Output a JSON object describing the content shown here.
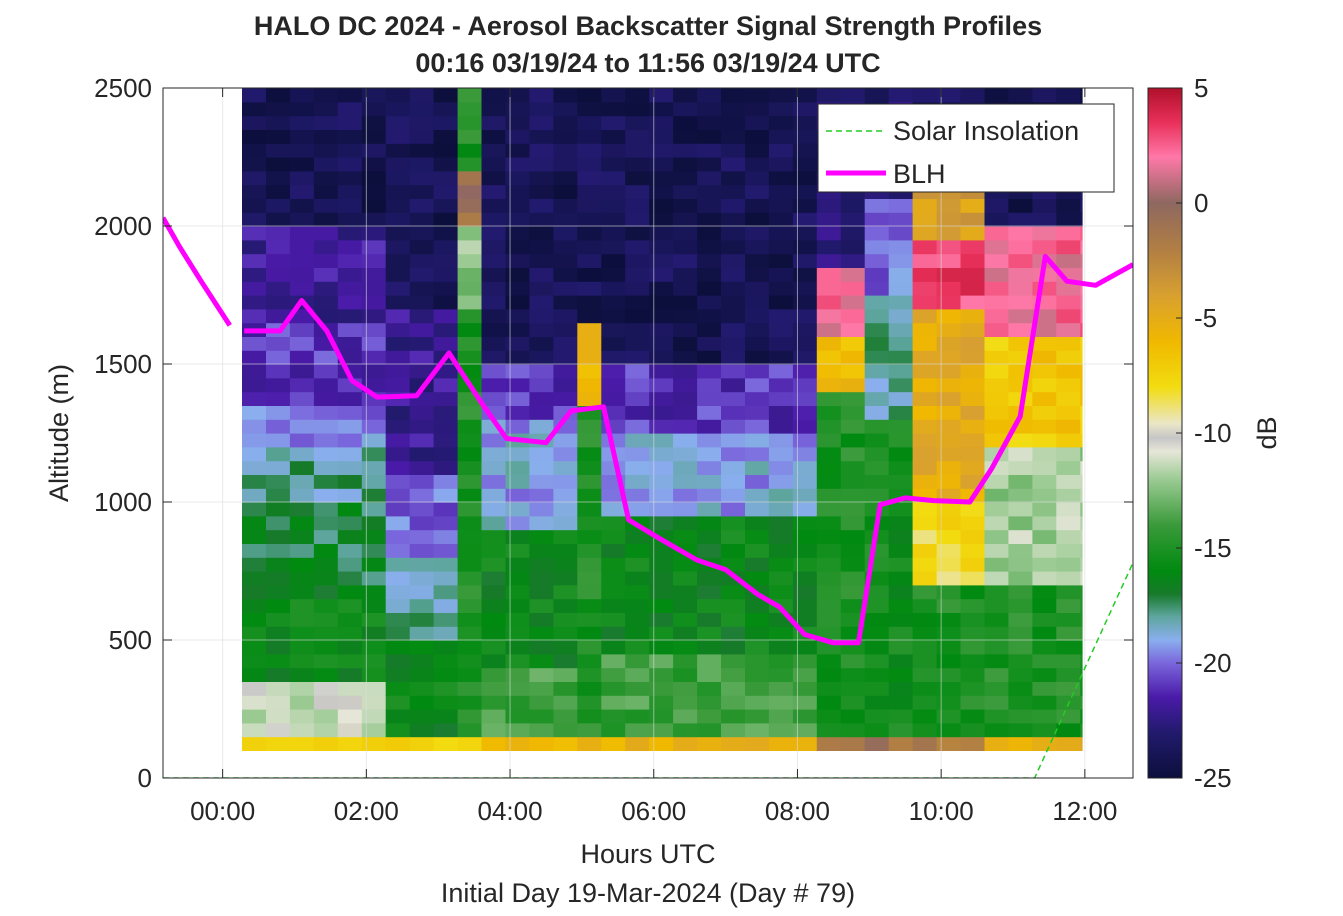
{
  "chart_data": {
    "type": "heatmap",
    "title": "HALO DC 2024 - Aerosol Backscatter Signal Strength Profiles",
    "subtitle": "00:16 03/19/24 to 11:56 03/19/24  UTC",
    "xlabel": "Hours UTC",
    "xlabel2": "Initial Day 19-Mar-2024 (Day # 79)",
    "ylabel": "Altitude (m)",
    "colorbar_label": "dB",
    "xlim": [
      -0.83,
      12.67
    ],
    "ylim": [
      0,
      2500
    ],
    "clim": [
      -25,
      5
    ],
    "x_ticks": [
      0,
      2,
      4,
      6,
      8,
      10,
      12
    ],
    "x_tick_labels": [
      "00:00",
      "02:00",
      "04:00",
      "06:00",
      "08:00",
      "10:00",
      "12:00"
    ],
    "y_ticks": [
      0,
      500,
      1000,
      1500,
      2000,
      2500
    ],
    "y_tick_labels": [
      "0",
      "500",
      "1000",
      "1500",
      "2000",
      "2500"
    ],
    "colorbar_ticks": [
      5,
      0,
      -5,
      -10,
      -15,
      -20,
      -25
    ],
    "colorbar_tick_labels": [
      "5",
      "0",
      "-5",
      "-10",
      "-15",
      "-20",
      "-25"
    ],
    "grid": true,
    "legend_position": "top-right",
    "legend": [
      "Solar Insolation",
      "BLH"
    ],
    "heatmap_grid": {
      "x_start": 0.27,
      "x_end": 11.96,
      "dx": 0.33333,
      "y_start": 100,
      "y_end": 2500,
      "dy": 50
    },
    "profiles_db": [
      {
        "x0": 0.27,
        "x1": 2.27,
        "layers": [
          [
            100,
            140,
            -7.5
          ],
          [
            140,
            350,
            -11
          ],
          [
            350,
            700,
            -16
          ],
          [
            700,
            1000,
            -17
          ],
          [
            1000,
            1200,
            -18
          ],
          [
            1200,
            1350,
            -19.5
          ],
          [
            1350,
            1650,
            -21
          ],
          [
            1650,
            2000,
            -22
          ],
          [
            2000,
            2500,
            -24
          ]
        ]
      },
      {
        "x0": 2.27,
        "x1": 3.27,
        "layers": [
          [
            100,
            140,
            -7
          ],
          [
            140,
            500,
            -16
          ],
          [
            500,
            800,
            -18
          ],
          [
            800,
            1100,
            -20
          ],
          [
            1100,
            1700,
            -22
          ],
          [
            1700,
            2500,
            -24
          ]
        ]
      },
      {
        "x0": 3.27,
        "x1": 3.6,
        "layers": [
          [
            100,
            140,
            -7
          ],
          [
            140,
            1700,
            -15
          ],
          [
            1700,
            2000,
            -12
          ],
          [
            2000,
            2200,
            -1
          ],
          [
            2200,
            2500,
            -15
          ]
        ]
      },
      {
        "x0": 3.6,
        "x1": 5.0,
        "layers": [
          [
            100,
            140,
            -6
          ],
          [
            140,
            400,
            -14
          ],
          [
            400,
            900,
            -16
          ],
          [
            900,
            1300,
            -19
          ],
          [
            1300,
            1500,
            -21
          ],
          [
            1500,
            2500,
            -24
          ]
        ]
      },
      {
        "x0": 5.0,
        "x1": 5.33,
        "layers": [
          [
            100,
            140,
            -5
          ],
          [
            140,
            1350,
            -15
          ],
          [
            1350,
            1650,
            -6
          ],
          [
            1650,
            2500,
            -24
          ]
        ]
      },
      {
        "x0": 5.33,
        "x1": 8.33,
        "layers": [
          [
            100,
            140,
            -5.5
          ],
          [
            140,
            450,
            -14
          ],
          [
            450,
            950,
            -16
          ],
          [
            950,
            1250,
            -19
          ],
          [
            1250,
            1500,
            -21
          ],
          [
            1500,
            2500,
            -24
          ]
        ]
      },
      {
        "x0": 8.33,
        "x1": 8.96,
        "layers": [
          [
            100,
            140,
            -2
          ],
          [
            140,
            1400,
            -15
          ],
          [
            1400,
            1600,
            -6
          ],
          [
            1600,
            1850,
            2
          ],
          [
            1850,
            2500,
            -23
          ]
        ]
      },
      {
        "x0": 8.96,
        "x1": 9.63,
        "layers": [
          [
            100,
            140,
            -1.5
          ],
          [
            140,
            1300,
            -15.5
          ],
          [
            1300,
            1750,
            -18
          ],
          [
            1750,
            2100,
            -20
          ],
          [
            2100,
            2500,
            -23
          ]
        ]
      },
      {
        "x0": 9.63,
        "x1": 10.63,
        "layers": [
          [
            100,
            140,
            -2
          ],
          [
            140,
            700,
            -15
          ],
          [
            700,
            1000,
            -8
          ],
          [
            1000,
            1700,
            -5
          ],
          [
            1700,
            1950,
            3
          ],
          [
            1950,
            2200,
            -4
          ],
          [
            2200,
            2500,
            -24
          ]
        ]
      },
      {
        "x0": 10.63,
        "x1": 11.96,
        "layers": [
          [
            100,
            140,
            -5
          ],
          [
            140,
            700,
            -15
          ],
          [
            700,
            1200,
            -12
          ],
          [
            1200,
            1600,
            -7
          ],
          [
            1600,
            2000,
            2
          ],
          [
            2000,
            2500,
            -24
          ]
        ]
      }
    ],
    "series": [
      {
        "name": "BLH",
        "color": "#ff00ff",
        "x": [
          -0.83,
          -0.6,
          -0.3,
          0.1,
          0.3,
          0.8,
          1.1,
          1.45,
          1.8,
          2.15,
          2.7,
          3.15,
          3.6,
          3.95,
          4.5,
          4.85,
          5.3,
          5.65,
          6.1,
          6.6,
          7.0,
          7.45,
          7.75,
          8.1,
          8.5,
          8.85,
          9.15,
          9.5,
          9.9,
          10.4,
          10.7,
          11.1,
          11.45,
          11.75,
          12.15,
          12.67
        ],
        "y": [
          2030,
          1925,
          1800,
          1640,
          1620,
          1620,
          1730,
          1620,
          1440,
          1380,
          1385,
          1540,
          1360,
          1230,
          1215,
          1330,
          1345,
          935,
          865,
          790,
          755,
          665,
          620,
          520,
          490,
          490,
          990,
          1015,
          1005,
          1000,
          1120,
          1310,
          1890,
          1800,
          1785,
          1860
        ],
        "gaps": [
          [
            0.1,
            0.3
          ]
        ]
      },
      {
        "name": "Solar Insolation",
        "color": "#22cc22",
        "x": [
          -0.83,
          11.3,
          12.67
        ],
        "y": [
          0,
          0,
          780
        ]
      }
    ]
  }
}
